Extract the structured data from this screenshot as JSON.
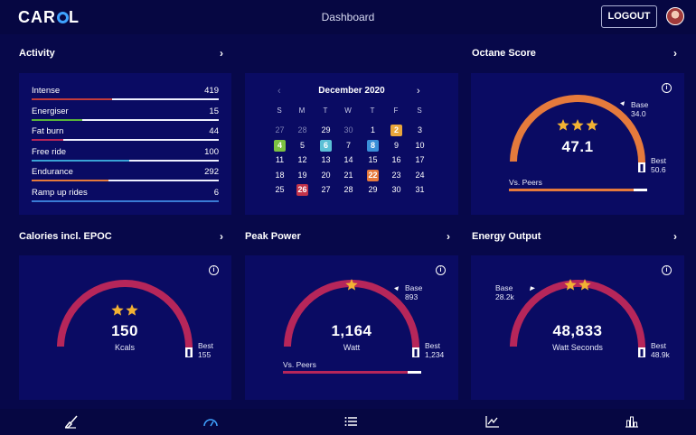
{
  "header": {
    "logo": "CAR",
    "logo_tail": "L",
    "title": "Dashboard",
    "logout": "LOGOUT"
  },
  "colors": {
    "accent_orange": "#e57a3c",
    "accent_crimson": "#b6265a",
    "accent_blue": "#3fa3ff",
    "star": "#f2b233"
  },
  "activity": {
    "title": "Activity",
    "rows": [
      {
        "label": "Intense",
        "value": "419",
        "fraction": 0.43,
        "color": "#c23b3b"
      },
      {
        "label": "Energiser",
        "value": "15",
        "fraction": 0.27,
        "color": "#59b33a"
      },
      {
        "label": "Fat burn",
        "value": "44",
        "fraction": 0.17,
        "color": "#b6265a"
      },
      {
        "label": "Free ride",
        "value": "100",
        "fraction": 0.52,
        "color": "#3aa3d6"
      },
      {
        "label": "Endurance",
        "value": "292",
        "fraction": 0.41,
        "color": "#e57a3c"
      },
      {
        "label": "Ramp up rides",
        "value": "6",
        "fraction": 1.0,
        "color": "#3a7bd5"
      }
    ]
  },
  "calendar": {
    "month": "December 2020",
    "weekdays": [
      "S",
      "M",
      "T",
      "W",
      "T",
      "F",
      "S"
    ],
    "weeks": [
      [
        {
          "d": "27",
          "muted": true
        },
        {
          "d": "28",
          "muted": true
        },
        {
          "d": "29"
        },
        {
          "d": "30",
          "muted": true
        },
        {
          "d": "1"
        },
        {
          "d": "2",
          "bg": "#e9a63b"
        },
        {
          "d": "3"
        }
      ],
      [
        {
          "d": "4",
          "bg": "#7cc142"
        },
        {
          "d": "5"
        },
        {
          "d": "6",
          "bg": "#5bc0d6"
        },
        {
          "d": "7"
        },
        {
          "d": "8",
          "bg": "#3a8fd8"
        },
        {
          "d": "9"
        },
        {
          "d": "10"
        }
      ],
      [
        {
          "d": "11"
        },
        {
          "d": "12"
        },
        {
          "d": "13"
        },
        {
          "d": "14"
        },
        {
          "d": "15"
        },
        {
          "d": "16"
        },
        {
          "d": "17"
        }
      ],
      [
        {
          "d": "18"
        },
        {
          "d": "19"
        },
        {
          "d": "20"
        },
        {
          "d": "21"
        },
        {
          "d": "22",
          "bg": "#e57a3c"
        },
        {
          "d": "23"
        },
        {
          "d": "24"
        }
      ],
      [
        {
          "d": "25"
        },
        {
          "d": "26",
          "bg": "#c2334a"
        },
        {
          "d": "27"
        },
        {
          "d": "28"
        },
        {
          "d": "29"
        },
        {
          "d": "30"
        },
        {
          "d": "31"
        }
      ]
    ]
  },
  "octane": {
    "title": "Octane Score",
    "value": "47.1",
    "stars": 3,
    "base_label": "Base",
    "base_value": "34.0",
    "best_label": "Best",
    "best_value": "50.6",
    "vs_label": "Vs. Peers",
    "vs_fraction": 0.9,
    "color": "#e57a3c"
  },
  "calories": {
    "title": "Calories incl. EPOC",
    "value": "150",
    "unit": "Kcals",
    "stars": 2,
    "best_label": "Best",
    "best_value": "155",
    "color": "#b6265a"
  },
  "peak": {
    "title": "Peak Power",
    "value": "1,164",
    "unit": "Watt",
    "stars": 1,
    "base_label": "Base",
    "base_value": "893",
    "best_label": "Best",
    "best_value": "1,234",
    "vs_label": "Vs. Peers",
    "vs_fraction": 0.9,
    "color": "#b6265a"
  },
  "energy": {
    "title": "Energy Output",
    "value": "48,833",
    "unit": "Watt Seconds",
    "stars": 2,
    "base_label": "Base",
    "base_value": "28.2k",
    "best_label": "Best",
    "best_value": "48.9k",
    "color": "#b6265a"
  },
  "nav": {
    "icons": [
      "sweep-icon",
      "gauge-icon",
      "list-icon",
      "line-chart-icon",
      "bar-chart-icon"
    ]
  }
}
